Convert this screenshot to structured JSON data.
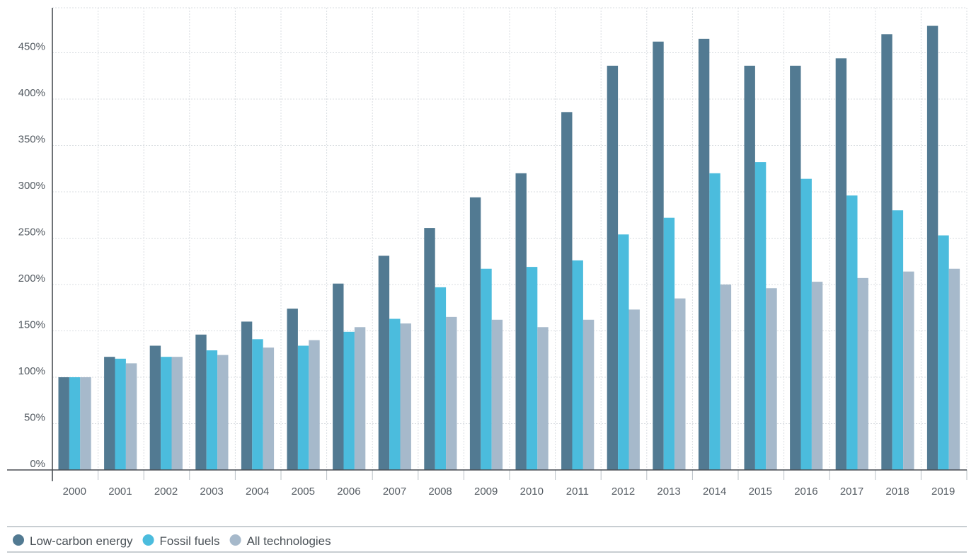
{
  "chart_data": {
    "type": "bar",
    "categories": [
      "2000",
      "2001",
      "2002",
      "2003",
      "2004",
      "2005",
      "2006",
      "2007",
      "2008",
      "2009",
      "2010",
      "2011",
      "2012",
      "2013",
      "2014",
      "2015",
      "2016",
      "2017",
      "2018",
      "2019"
    ],
    "series": [
      {
        "name": "Low-carbon energy",
        "color": "#527a92",
        "values": [
          100,
          122,
          134,
          146,
          160,
          174,
          201,
          231,
          261,
          294,
          320,
          386,
          436,
          462,
          465,
          436,
          436,
          444,
          470,
          479
        ]
      },
      {
        "name": "Fossil fuels",
        "color": "#4bbcdd",
        "values": [
          100,
          120,
          122,
          129,
          141,
          134,
          149,
          163,
          197,
          217,
          219,
          226,
          254,
          272,
          320,
          332,
          314,
          296,
          280,
          253
        ]
      },
      {
        "name": "All technologies",
        "color": "#a6b9cb",
        "values": [
          100,
          115,
          122,
          124,
          132,
          140,
          154,
          158,
          165,
          162,
          154,
          162,
          173,
          185,
          200,
          196,
          203,
          207,
          214,
          217
        ]
      }
    ],
    "y_ticks": [
      "0%",
      "50%",
      "100%",
      "150%",
      "200%",
      "250%",
      "300%",
      "350%",
      "400%",
      "450%"
    ],
    "y_tick_values": [
      0,
      50,
      100,
      150,
      200,
      250,
      300,
      350,
      400,
      450
    ],
    "ylim": [
      0,
      500
    ],
    "title": "",
    "xlabel": "",
    "ylabel": "",
    "grid": true,
    "legend_position": "bottom-left"
  }
}
